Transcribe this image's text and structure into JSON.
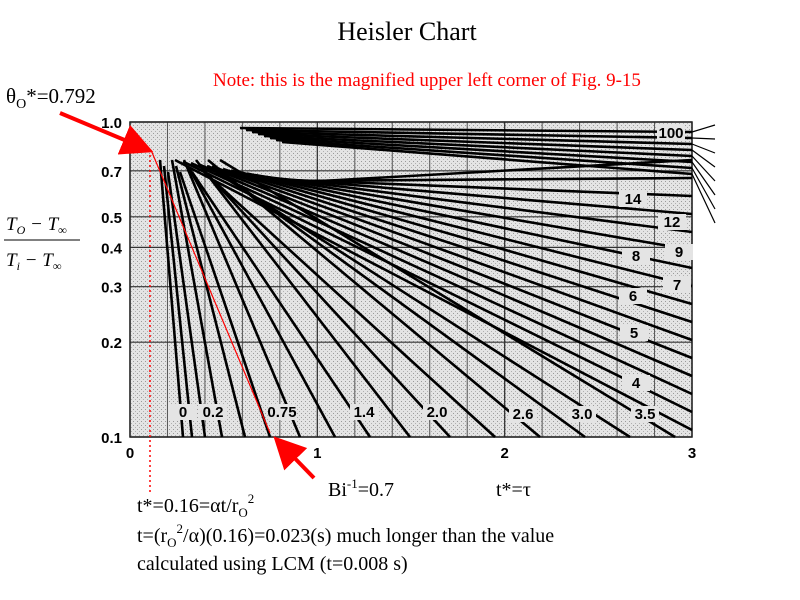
{
  "header": {
    "title": "Heisler Chart",
    "note": "Note: this is the magnified upper left corner of Fig. 9-15"
  },
  "chart_data": {
    "type": "line",
    "y_label": {
      "numerator": [
        "T",
        "O",
        " − T",
        "∞"
      ],
      "denominator": [
        "T",
        "i",
        " − T",
        "∞"
      ]
    },
    "x_label": "t*=τ",
    "xlim": [
      0,
      3
    ],
    "xticks": [
      0,
      1,
      2,
      3
    ],
    "ylim": [
      0.1,
      1
    ],
    "ylog": true,
    "yticks": [
      0.1,
      0.2,
      0.3,
      0.4,
      0.5,
      0.7,
      {
        "value": 1,
        "label": "1.0"
      }
    ],
    "grid": true,
    "curve_labels": [
      "0",
      "0.2",
      "0.75",
      "1.4",
      "2.0",
      "2.6",
      "3.0",
      "3.5",
      "4",
      "5",
      "6",
      "7",
      "8",
      "9",
      "12",
      "14",
      "100"
    ]
  },
  "annotations": {
    "theta": [
      "θ",
      "O",
      "*=0.792"
    ],
    "biot": [
      "Bi",
      "-1",
      "=0.7"
    ],
    "line1": [
      "t*=0.16=αt/r",
      "O",
      "2"
    ],
    "line2": [
      "t=(r",
      "O",
      "2",
      "/α)(0.16)=0.023(s) much longer than the value"
    ],
    "line3": "calculated using LCM (t=0.008 s)"
  }
}
